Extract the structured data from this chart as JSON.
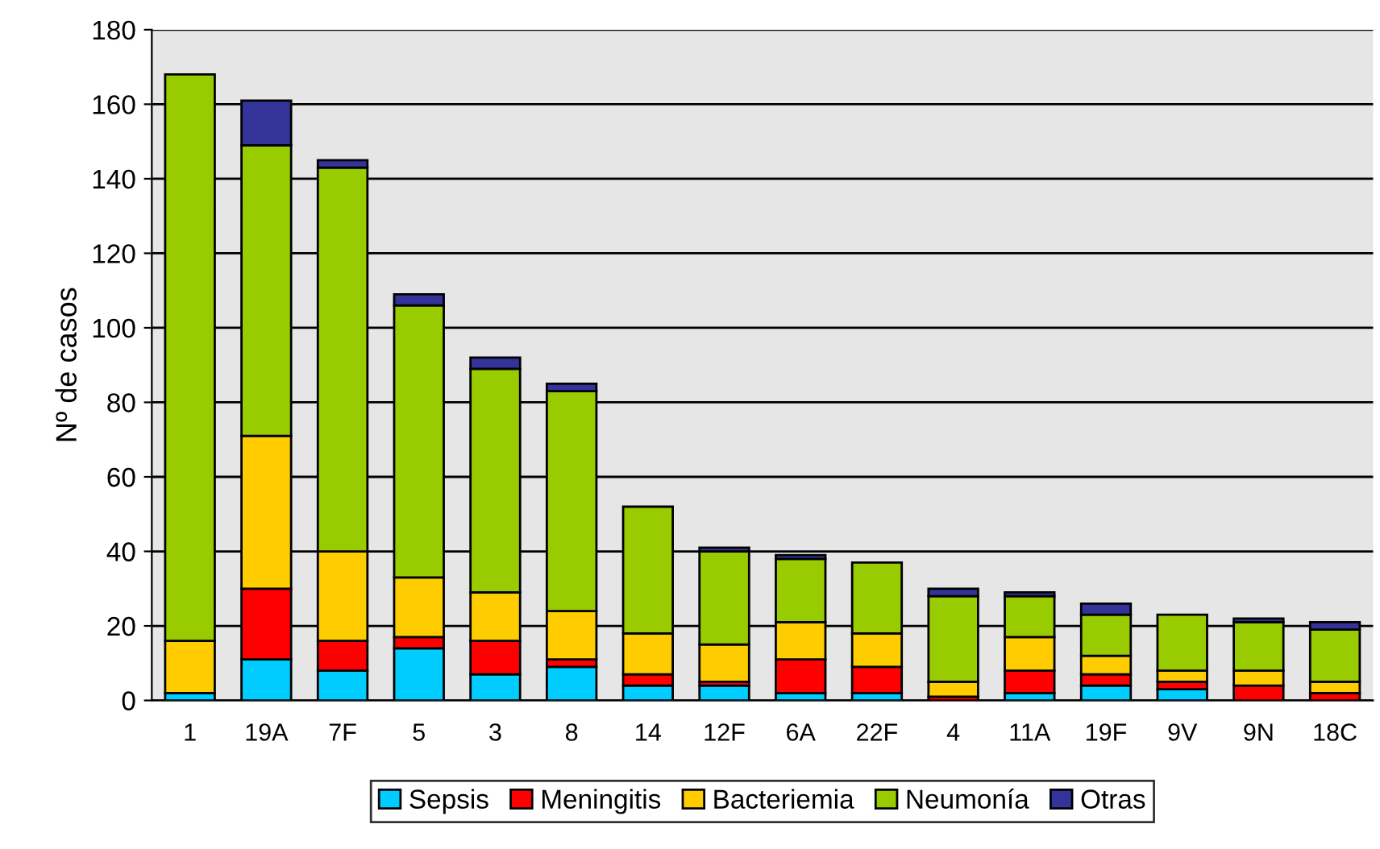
{
  "chart_data": {
    "type": "bar",
    "stacked": true,
    "ylabel": "Nº de casos",
    "categories": [
      "1",
      "19A",
      "7F",
      "5",
      "3",
      "8",
      "14",
      "12F",
      "6A",
      "22F",
      "4",
      "11A",
      "19F",
      "9V",
      "9N",
      "18C"
    ],
    "series": [
      {
        "name": "Sepsis",
        "color": "#00ccff",
        "values": [
          2,
          11,
          8,
          14,
          7,
          9,
          4,
          4,
          2,
          2,
          0,
          2,
          4,
          3,
          0,
          0
        ]
      },
      {
        "name": "Meningitis",
        "color": "#ff0000",
        "values": [
          0,
          19,
          8,
          3,
          9,
          2,
          3,
          1,
          9,
          7,
          1,
          6,
          3,
          2,
          4,
          2
        ]
      },
      {
        "name": "Bacteriemia",
        "color": "#ffcc00",
        "values": [
          14,
          41,
          24,
          16,
          13,
          13,
          11,
          10,
          10,
          9,
          4,
          9,
          5,
          3,
          4,
          3
        ]
      },
      {
        "name": "Neumonía",
        "color": "#99cc00",
        "values": [
          152,
          78,
          103,
          73,
          60,
          59,
          34,
          25,
          17,
          19,
          23,
          11,
          11,
          15,
          13,
          14
        ]
      },
      {
        "name": "Otras",
        "color": "#333399",
        "values": [
          0,
          12,
          2,
          3,
          3,
          2,
          0,
          1,
          1,
          0,
          2,
          1,
          3,
          0,
          1,
          2
        ]
      }
    ],
    "ylim": [
      0,
      180
    ],
    "yticks": [
      0,
      20,
      40,
      60,
      80,
      100,
      120,
      140,
      160,
      180
    ],
    "grid": "y",
    "legend": "bottom"
  }
}
